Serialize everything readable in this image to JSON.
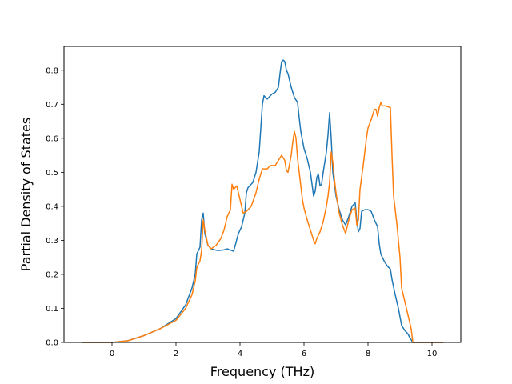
{
  "chart_data": {
    "type": "line",
    "title": "",
    "xlabel": "Frequency (THz)",
    "ylabel": "Partial Density of States",
    "xlim": [
      -1.5,
      10.9
    ],
    "ylim": [
      0.0,
      0.87
    ],
    "xticks": [
      0,
      2,
      4,
      6,
      8,
      10
    ],
    "yticks": [
      0.0,
      0.1,
      0.2,
      0.3,
      0.4,
      0.5,
      0.6,
      0.7,
      0.8
    ],
    "xtick_labels": [
      "0",
      "2",
      "4",
      "6",
      "8",
      "10"
    ],
    "ytick_labels": [
      "0.0",
      "0.1",
      "0.2",
      "0.3",
      "0.4",
      "0.5",
      "0.6",
      "0.7",
      "0.8"
    ],
    "grid": false,
    "legend": "none",
    "series": [
      {
        "color": "#1f77b4",
        "points": [
          [
            -0.95,
            0.0
          ],
          [
            0.0,
            0.0
          ],
          [
            0.5,
            0.005
          ],
          [
            1.0,
            0.02
          ],
          [
            1.5,
            0.04
          ],
          [
            2.0,
            0.07
          ],
          [
            2.3,
            0.11
          ],
          [
            2.5,
            0.16
          ],
          [
            2.6,
            0.2
          ],
          [
            2.65,
            0.26
          ],
          [
            2.75,
            0.28
          ],
          [
            2.8,
            0.36
          ],
          [
            2.85,
            0.38
          ],
          [
            2.9,
            0.32
          ],
          [
            3.0,
            0.285
          ],
          [
            3.1,
            0.275
          ],
          [
            3.3,
            0.27
          ],
          [
            3.5,
            0.272
          ],
          [
            3.6,
            0.275
          ],
          [
            3.8,
            0.268
          ],
          [
            3.85,
            0.285
          ],
          [
            3.95,
            0.32
          ],
          [
            4.05,
            0.34
          ],
          [
            4.15,
            0.38
          ],
          [
            4.2,
            0.44
          ],
          [
            4.25,
            0.455
          ],
          [
            4.4,
            0.47
          ],
          [
            4.5,
            0.5
          ],
          [
            4.6,
            0.56
          ],
          [
            4.65,
            0.63
          ],
          [
            4.7,
            0.7
          ],
          [
            4.75,
            0.725
          ],
          [
            4.85,
            0.715
          ],
          [
            5.0,
            0.73
          ],
          [
            5.1,
            0.735
          ],
          [
            5.2,
            0.75
          ],
          [
            5.25,
            0.79
          ],
          [
            5.3,
            0.825
          ],
          [
            5.35,
            0.83
          ],
          [
            5.4,
            0.825
          ],
          [
            5.45,
            0.8
          ],
          [
            5.5,
            0.79
          ],
          [
            5.6,
            0.75
          ],
          [
            5.7,
            0.72
          ],
          [
            5.8,
            0.705
          ],
          [
            5.85,
            0.66
          ],
          [
            5.9,
            0.62
          ],
          [
            6.0,
            0.57
          ],
          [
            6.1,
            0.54
          ],
          [
            6.2,
            0.5
          ],
          [
            6.3,
            0.43
          ],
          [
            6.35,
            0.445
          ],
          [
            6.4,
            0.485
          ],
          [
            6.45,
            0.495
          ],
          [
            6.5,
            0.46
          ],
          [
            6.55,
            0.465
          ],
          [
            6.6,
            0.5
          ],
          [
            6.7,
            0.56
          ],
          [
            6.75,
            0.61
          ],
          [
            6.8,
            0.675
          ],
          [
            6.85,
            0.6
          ],
          [
            6.9,
            0.5
          ],
          [
            7.0,
            0.43
          ],
          [
            7.1,
            0.39
          ],
          [
            7.2,
            0.36
          ],
          [
            7.3,
            0.345
          ],
          [
            7.4,
            0.37
          ],
          [
            7.5,
            0.4
          ],
          [
            7.6,
            0.41
          ],
          [
            7.65,
            0.36
          ],
          [
            7.7,
            0.325
          ],
          [
            7.75,
            0.335
          ],
          [
            7.8,
            0.385
          ],
          [
            7.9,
            0.39
          ],
          [
            8.0,
            0.39
          ],
          [
            8.1,
            0.385
          ],
          [
            8.2,
            0.36
          ],
          [
            8.3,
            0.34
          ],
          [
            8.35,
            0.29
          ],
          [
            8.4,
            0.26
          ],
          [
            8.5,
            0.24
          ],
          [
            8.6,
            0.225
          ],
          [
            8.7,
            0.215
          ],
          [
            8.75,
            0.185
          ],
          [
            8.85,
            0.14
          ],
          [
            8.95,
            0.1
          ],
          [
            9.05,
            0.05
          ],
          [
            9.15,
            0.035
          ],
          [
            9.25,
            0.025
          ],
          [
            9.3,
            0.015
          ],
          [
            9.4,
            0.0
          ],
          [
            10.35,
            0.0
          ]
        ]
      },
      {
        "color": "#ff7f0e",
        "points": [
          [
            -0.95,
            0.0
          ],
          [
            0.0,
            0.0
          ],
          [
            0.5,
            0.005
          ],
          [
            1.0,
            0.02
          ],
          [
            1.5,
            0.04
          ],
          [
            2.0,
            0.065
          ],
          [
            2.3,
            0.1
          ],
          [
            2.5,
            0.14
          ],
          [
            2.6,
            0.18
          ],
          [
            2.65,
            0.22
          ],
          [
            2.75,
            0.24
          ],
          [
            2.8,
            0.27
          ],
          [
            2.85,
            0.36
          ],
          [
            2.9,
            0.33
          ],
          [
            3.0,
            0.285
          ],
          [
            3.1,
            0.275
          ],
          [
            3.25,
            0.285
          ],
          [
            3.4,
            0.305
          ],
          [
            3.5,
            0.33
          ],
          [
            3.6,
            0.37
          ],
          [
            3.7,
            0.39
          ],
          [
            3.75,
            0.465
          ],
          [
            3.8,
            0.45
          ],
          [
            3.9,
            0.46
          ],
          [
            4.0,
            0.42
          ],
          [
            4.1,
            0.38
          ],
          [
            4.2,
            0.385
          ],
          [
            4.35,
            0.4
          ],
          [
            4.5,
            0.44
          ],
          [
            4.6,
            0.48
          ],
          [
            4.7,
            0.51
          ],
          [
            4.85,
            0.51
          ],
          [
            4.95,
            0.52
          ],
          [
            5.1,
            0.52
          ],
          [
            5.2,
            0.535
          ],
          [
            5.3,
            0.55
          ],
          [
            5.4,
            0.535
          ],
          [
            5.45,
            0.505
          ],
          [
            5.5,
            0.5
          ],
          [
            5.6,
            0.55
          ],
          [
            5.65,
            0.59
          ],
          [
            5.7,
            0.62
          ],
          [
            5.75,
            0.6
          ],
          [
            5.8,
            0.54
          ],
          [
            5.85,
            0.5
          ],
          [
            5.9,
            0.46
          ],
          [
            5.95,
            0.42
          ],
          [
            6.0,
            0.395
          ],
          [
            6.1,
            0.36
          ],
          [
            6.2,
            0.33
          ],
          [
            6.3,
            0.3
          ],
          [
            6.35,
            0.29
          ],
          [
            6.4,
            0.305
          ],
          [
            6.5,
            0.325
          ],
          [
            6.6,
            0.355
          ],
          [
            6.7,
            0.4
          ],
          [
            6.75,
            0.43
          ],
          [
            6.8,
            0.47
          ],
          [
            6.85,
            0.56
          ],
          [
            6.9,
            0.53
          ],
          [
            6.95,
            0.48
          ],
          [
            7.0,
            0.44
          ],
          [
            7.1,
            0.38
          ],
          [
            7.2,
            0.345
          ],
          [
            7.3,
            0.32
          ],
          [
            7.4,
            0.36
          ],
          [
            7.5,
            0.39
          ],
          [
            7.6,
            0.395
          ],
          [
            7.65,
            0.345
          ],
          [
            7.7,
            0.36
          ],
          [
            7.75,
            0.45
          ],
          [
            7.85,
            0.52
          ],
          [
            7.95,
            0.6
          ],
          [
            8.0,
            0.63
          ],
          [
            8.1,
            0.655
          ],
          [
            8.2,
            0.685
          ],
          [
            8.25,
            0.685
          ],
          [
            8.3,
            0.665
          ],
          [
            8.35,
            0.69
          ],
          [
            8.4,
            0.705
          ],
          [
            8.45,
            0.695
          ],
          [
            8.55,
            0.695
          ],
          [
            8.7,
            0.69
          ],
          [
            8.75,
            0.55
          ],
          [
            8.8,
            0.43
          ],
          [
            8.9,
            0.35
          ],
          [
            9.0,
            0.25
          ],
          [
            9.05,
            0.16
          ],
          [
            9.15,
            0.12
          ],
          [
            9.25,
            0.08
          ],
          [
            9.35,
            0.04
          ],
          [
            9.4,
            0.0
          ],
          [
            10.35,
            0.0
          ]
        ]
      }
    ]
  }
}
